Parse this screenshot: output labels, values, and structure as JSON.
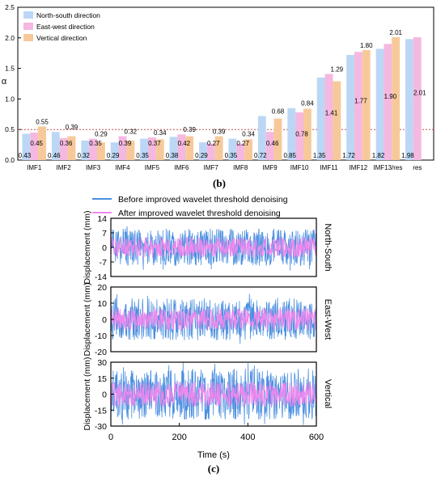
{
  "chart_data": [
    {
      "type": "bar",
      "panel_label": "(b)",
      "ylabel": "α",
      "ylim": [
        0,
        2.5
      ],
      "yticks": [
        "0.0",
        "0.5",
        "1.0",
        "1.5",
        "2.0",
        "2.5"
      ],
      "threshold": 0.5,
      "categories": [
        "IMF1",
        "IMF2",
        "IMF3",
        "IMF4",
        "IMF5",
        "IMF6",
        "IMF7",
        "IMF8",
        "IMF9",
        "IMF10",
        "IMF11",
        "IMF12",
        "IMF13/res",
        "res"
      ],
      "series": [
        {
          "name": "North-south direction",
          "values": [
            0.43,
            0.46,
            0.32,
            0.29,
            0.35,
            0.38,
            0.29,
            0.35,
            0.72,
            0.85,
            1.35,
            1.72,
            1.82,
            1.98
          ]
        },
        {
          "name": "East-west direction",
          "values": [
            0.45,
            0.36,
            0.35,
            0.39,
            0.37,
            0.42,
            0.27,
            0.27,
            0.46,
            0.78,
            1.41,
            1.77,
            1.9,
            2.01
          ]
        },
        {
          "name": "Vertical direction",
          "values": [
            0.55,
            0.39,
            0.29,
            0.32,
            0.34,
            0.39,
            0.39,
            0.34,
            0.68,
            0.84,
            1.29,
            1.8,
            2.01,
            null
          ]
        }
      ],
      "data_labels": [
        {
          "category": "IMF1",
          "above": "0.55",
          "middle": "0.45",
          "bottom": "0.43"
        },
        {
          "category": "IMF2",
          "above": "0.39",
          "middle": "0.36",
          "bottom": "0.46"
        },
        {
          "category": "IMF3",
          "above": "0.29",
          "middle": "0.35",
          "bottom": "0.32"
        },
        {
          "category": "IMF4",
          "above": "0.32",
          "middle": "0.39",
          "bottom": "0.29"
        },
        {
          "category": "IMF5",
          "above": "0.34",
          "middle": "0.37",
          "bottom": "0.35"
        },
        {
          "category": "IMF6",
          "above": "0.39",
          "middle": "0.42",
          "bottom": "0.38"
        },
        {
          "category": "IMF7",
          "above": "0.39",
          "middle": "0.27",
          "bottom": "0.29"
        },
        {
          "category": "IMF8",
          "above": "0.34",
          "middle": "0.27",
          "bottom": "0.35"
        },
        {
          "category": "IMF9",
          "above": "0.68",
          "middle": "0.46",
          "bottom": "0.72"
        },
        {
          "category": "IMF10",
          "above": "0.84",
          "middle": "0.78",
          "bottom": "0.85"
        },
        {
          "category": "IMF11",
          "above": "1.29",
          "middle": "1.41",
          "bottom": "1.35"
        },
        {
          "category": "IMF12",
          "above": "1.80",
          "middle": "1.77",
          "bottom": "1.72"
        },
        {
          "category": "IMF13/res",
          "above": "2.01",
          "middle": "1.90",
          "bottom": "1.82"
        },
        {
          "category": "res",
          "above": "",
          "middle": "2.01",
          "bottom": "1.98"
        }
      ],
      "legend_position": "top-left",
      "colors": {
        "north_south": "#bcd7f5",
        "east_west": "#f5b8e0",
        "vertical": "#f7c99a",
        "threshold": "#c0504d"
      }
    },
    {
      "type": "line",
      "panel_label": "(c)",
      "xlabel": "Time (s)",
      "xlim": [
        0,
        600
      ],
      "xticks": [
        "0",
        "200",
        "400",
        "600"
      ],
      "legend": [
        "Before improved wavelet threshold denoising",
        "After improved wavelet threshold denoising"
      ],
      "colors": {
        "before": "#4a8fe0",
        "after": "#ee88ee"
      },
      "ylabel": "Displacement (mm)",
      "panels": [
        {
          "name": "North-South",
          "ylim": [
            -14,
            14
          ],
          "yticks": [
            "14",
            "7",
            "0",
            "-7",
            "-14"
          ],
          "before_amplitude": 9,
          "after_amplitude": 5
        },
        {
          "name": "East-West",
          "ylim": [
            -20,
            20
          ],
          "yticks": [
            "20",
            "10",
            "0",
            "-10",
            "-20"
          ],
          "before_amplitude": 13,
          "after_amplitude": 7
        },
        {
          "name": "Vertical",
          "ylim": [
            -30,
            30
          ],
          "yticks": [
            "30",
            "15",
            "0",
            "-15",
            "-30"
          ],
          "before_amplitude": 24,
          "after_amplitude": 12
        }
      ]
    }
  ]
}
